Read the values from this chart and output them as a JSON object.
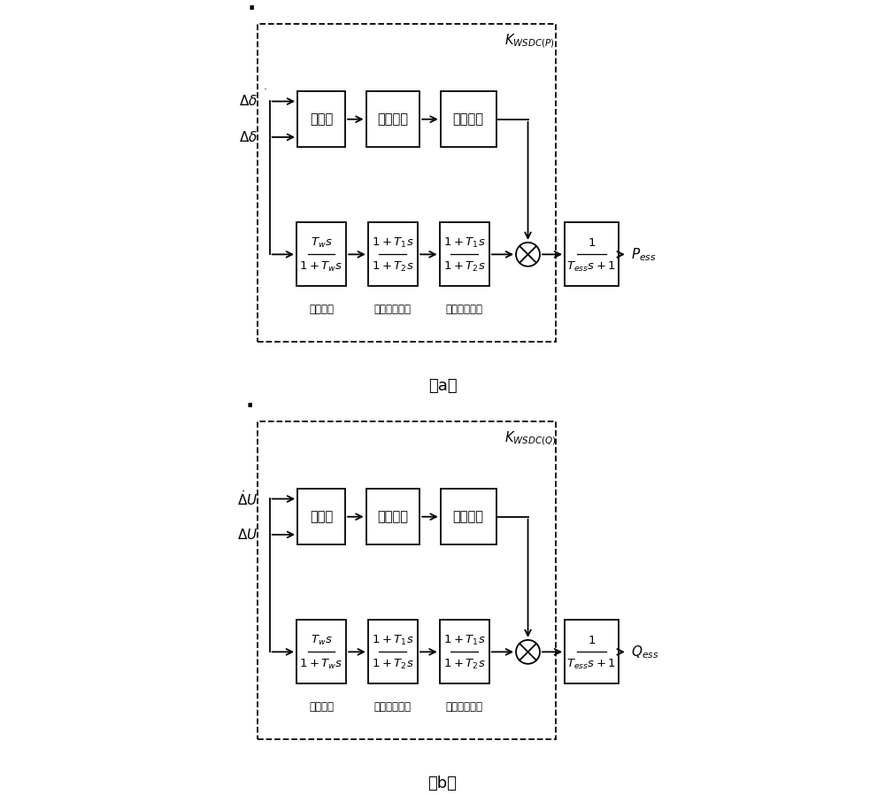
{
  "fig_width": 10.0,
  "fig_height": 8.98,
  "bg_color": "#ffffff",
  "diagram_a": {
    "caption": "（a）",
    "input1_label": "Δδ",
    "input2_label": "Δδ",
    "has_dot": true,
    "fuzzy_box_text": "模糊化",
    "rules_box_text": "模糊规则",
    "defuzzy_box_text": "解模糊化",
    "k_label": "K_WSDC(P)",
    "block1_text": "Tw_s_frac",
    "block1_sub": "隔直环节",
    "block2_text": "T12_s_frac",
    "block2_sub": "相位补偿环节",
    "block3_text": "T12_s_frac",
    "block3_sub": "相位补偿环节",
    "outbox_text": "Tess_frac",
    "output_label": "P_ess"
  },
  "diagram_b": {
    "caption": "（b）",
    "input1_label": "Δ̇U",
    "input2_label": "ΔU",
    "has_dot": false,
    "fuzzy_box_text": "模糊化",
    "rules_box_text": "模糊规则",
    "defuzzy_box_text": "解模糊化",
    "k_label": "K_WSDC(Q)",
    "block1_text": "Tw_s_frac",
    "block1_sub": "隔直环节",
    "block2_text": "T12_s_frac",
    "block2_sub": "相位补偿环节",
    "block3_text": "T12_s_frac",
    "block3_sub": "相位补偿环节",
    "outbox_text": "Tess_frac",
    "output_label": "Q_ess"
  }
}
